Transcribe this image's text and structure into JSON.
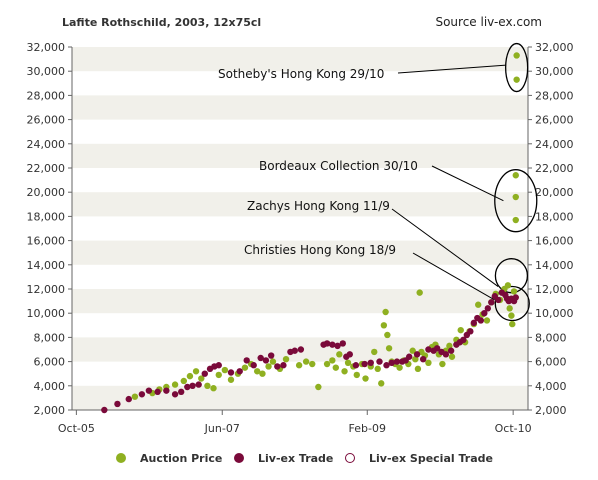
{
  "header": {
    "title": "Lafite Rothschild, 2003, 12x75cl",
    "source": "Source liv-ex.com"
  },
  "legend": {
    "items": [
      {
        "label": "Auction Price",
        "color": "#8fb021",
        "hollow": false
      },
      {
        "label": "Liv-ex Trade",
        "color": "#7a0a3a",
        "hollow": false
      },
      {
        "label": "Liv-ex Special Trade",
        "color": "#7a0a3a",
        "hollow": true
      }
    ]
  },
  "colors": {
    "auction": "#8fb021",
    "trade": "#7a0a3a",
    "band": "#f1f0ea",
    "axis": "#666666"
  },
  "chart_data": {
    "type": "scatter",
    "title": "Lafite Rothschild, 2003, 12x75cl",
    "source": "Source liv-ex.com",
    "xlabel": "",
    "ylabel": "",
    "ylim": [
      2000,
      32000
    ],
    "xlim": [
      "2005-10",
      "2010-11"
    ],
    "y_ticks": [
      "2,000",
      "4,000",
      "6,000",
      "8,000",
      "10,000",
      "12,000",
      "14,000",
      "16,000",
      "18,000",
      "20,000",
      "22,000",
      "24,000",
      "26,000",
      "28,000",
      "30,000",
      "32,000"
    ],
    "x_ticks": [
      {
        "label": "Oct-05",
        "value": 2005.75
      },
      {
        "label": "Jun-07",
        "value": 2007.42
      },
      {
        "label": "Feb-09",
        "value": 2009.08
      },
      {
        "label": "Oct-10",
        "value": 2010.75
      }
    ],
    "axes": {
      "left": true,
      "right": true
    },
    "grid": "alternating horizontal bands",
    "series": [
      {
        "name": "Auction Price",
        "points": [
          [
            2006.42,
            3100
          ],
          [
            2006.62,
            3400
          ],
          [
            2006.7,
            3700
          ],
          [
            2006.78,
            3900
          ],
          [
            2006.88,
            4100
          ],
          [
            2006.98,
            4400
          ],
          [
            2007.05,
            4800
          ],
          [
            2007.12,
            5200
          ],
          [
            2007.18,
            4600
          ],
          [
            2007.25,
            4000
          ],
          [
            2007.32,
            3800
          ],
          [
            2007.38,
            4900
          ],
          [
            2007.45,
            5300
          ],
          [
            2007.52,
            4500
          ],
          [
            2007.6,
            5000
          ],
          [
            2007.68,
            5500
          ],
          [
            2007.75,
            5800
          ],
          [
            2007.82,
            5200
          ],
          [
            2007.88,
            5000
          ],
          [
            2007.95,
            5600
          ],
          [
            2008.0,
            6000
          ],
          [
            2008.08,
            5400
          ],
          [
            2008.15,
            6200
          ],
          [
            2008.3,
            5700
          ],
          [
            2008.38,
            6000
          ],
          [
            2008.45,
            5800
          ],
          [
            2008.52,
            3900
          ],
          [
            2008.62,
            5800
          ],
          [
            2008.68,
            6100
          ],
          [
            2008.72,
            5500
          ],
          [
            2008.76,
            6600
          ],
          [
            2008.82,
            5200
          ],
          [
            2008.86,
            5900
          ],
          [
            2008.92,
            5600
          ],
          [
            2008.96,
            4900
          ],
          [
            2009.02,
            5800
          ],
          [
            2009.06,
            4600
          ],
          [
            2009.12,
            5600
          ],
          [
            2009.16,
            6800
          ],
          [
            2009.2,
            5400
          ],
          [
            2009.24,
            4200
          ],
          [
            2009.27,
            9000
          ],
          [
            2009.29,
            10100
          ],
          [
            2009.31,
            8200
          ],
          [
            2009.33,
            7100
          ],
          [
            2009.36,
            6000
          ],
          [
            2009.4,
            5800
          ],
          [
            2009.45,
            5500
          ],
          [
            2009.5,
            6100
          ],
          [
            2009.55,
            5800
          ],
          [
            2009.6,
            6900
          ],
          [
            2009.63,
            6200
          ],
          [
            2009.66,
            5400
          ],
          [
            2009.68,
            11700
          ],
          [
            2009.7,
            6800
          ],
          [
            2009.74,
            6500
          ],
          [
            2009.78,
            5900
          ],
          [
            2009.82,
            7200
          ],
          [
            2009.86,
            7400
          ],
          [
            2009.9,
            6600
          ],
          [
            2009.94,
            5800
          ],
          [
            2009.98,
            6900
          ],
          [
            2010.02,
            7300
          ],
          [
            2010.05,
            6400
          ],
          [
            2010.1,
            7800
          ],
          [
            2010.15,
            8600
          ],
          [
            2010.2,
            7600
          ],
          [
            2010.25,
            8500
          ],
          [
            2010.3,
            9100
          ],
          [
            2010.35,
            10700
          ],
          [
            2010.4,
            9900
          ],
          [
            2010.45,
            9400
          ],
          [
            2010.5,
            10900
          ],
          [
            2010.55,
            11600
          ],
          [
            2010.6,
            11100
          ],
          [
            2010.65,
            12000
          ],
          [
            2010.69,
            12300
          ],
          [
            2010.71,
            10400
          ],
          [
            2010.73,
            9800
          ],
          [
            2010.74,
            9100
          ],
          [
            2010.76,
            11800
          ],
          [
            2010.78,
            21400
          ],
          [
            2010.78,
            19600
          ],
          [
            2010.78,
            17700
          ],
          [
            2010.79,
            31300
          ],
          [
            2010.79,
            29300
          ]
        ]
      },
      {
        "name": "Liv-ex Trade",
        "points": [
          [
            2006.07,
            2000
          ],
          [
            2006.22,
            2500
          ],
          [
            2006.35,
            2900
          ],
          [
            2006.5,
            3300
          ],
          [
            2006.58,
            3600
          ],
          [
            2006.68,
            3500
          ],
          [
            2006.78,
            3600
          ],
          [
            2006.88,
            3300
          ],
          [
            2006.95,
            3500
          ],
          [
            2007.02,
            3900
          ],
          [
            2007.08,
            4000
          ],
          [
            2007.15,
            4100
          ],
          [
            2007.22,
            5000
          ],
          [
            2007.28,
            5400
          ],
          [
            2007.33,
            5600
          ],
          [
            2007.38,
            5700
          ],
          [
            2007.52,
            5100
          ],
          [
            2007.62,
            5200
          ],
          [
            2007.7,
            6100
          ],
          [
            2007.78,
            5700
          ],
          [
            2007.86,
            6300
          ],
          [
            2007.92,
            6100
          ],
          [
            2007.98,
            6500
          ],
          [
            2008.05,
            5600
          ],
          [
            2008.12,
            5700
          ],
          [
            2008.2,
            6800
          ],
          [
            2008.25,
            6900
          ],
          [
            2008.32,
            7000
          ],
          [
            2008.58,
            7400
          ],
          [
            2008.62,
            7500
          ],
          [
            2008.68,
            7400
          ],
          [
            2008.74,
            7300
          ],
          [
            2008.8,
            7500
          ],
          [
            2008.84,
            6400
          ],
          [
            2008.88,
            6600
          ],
          [
            2008.95,
            5700
          ],
          [
            2009.05,
            5800
          ],
          [
            2009.12,
            5900
          ],
          [
            2009.22,
            6000
          ],
          [
            2009.3,
            5700
          ],
          [
            2009.36,
            5900
          ],
          [
            2009.42,
            6000
          ],
          [
            2009.48,
            6000
          ],
          [
            2009.52,
            6100
          ],
          [
            2009.56,
            6400
          ],
          [
            2009.65,
            6600
          ],
          [
            2009.72,
            6200
          ],
          [
            2009.78,
            7000
          ],
          [
            2009.84,
            6900
          ],
          [
            2009.88,
            7100
          ],
          [
            2009.93,
            6800
          ],
          [
            2009.98,
            6600
          ],
          [
            2010.04,
            6900
          ],
          [
            2010.1,
            7400
          ],
          [
            2010.14,
            7600
          ],
          [
            2010.18,
            7800
          ],
          [
            2010.22,
            8200
          ],
          [
            2010.26,
            8500
          ],
          [
            2010.3,
            9200
          ],
          [
            2010.34,
            9600
          ],
          [
            2010.38,
            9400
          ],
          [
            2010.42,
            10000
          ],
          [
            2010.46,
            10400
          ],
          [
            2010.5,
            10900
          ],
          [
            2010.54,
            11400
          ],
          [
            2010.58,
            11100
          ],
          [
            2010.62,
            11700
          ],
          [
            2010.66,
            11500
          ],
          [
            2010.68,
            11200
          ],
          [
            2010.7,
            11000
          ],
          [
            2010.73,
            11200
          ],
          [
            2010.76,
            11000
          ],
          [
            2010.78,
            11300
          ]
        ]
      },
      {
        "name": "Liv-ex Special Trade",
        "points": []
      }
    ],
    "annotations": [
      {
        "text": "Sotheby's Hong Kong 29/10",
        "target": {
          "x": 2010.76,
          "y": 30500
        }
      },
      {
        "text": "Bordeaux Collection 30/10",
        "target": {
          "x": 2010.73,
          "y": 19300
        }
      },
      {
        "text": "Zachys Hong Kong 11/9",
        "target": {
          "x": 2010.67,
          "y": 12200
        }
      },
      {
        "text": "Christies Hong Kong 18/9",
        "target": {
          "x": 2010.63,
          "y": 11100
        }
      }
    ],
    "highlight_ellipses": [
      {
        "label": "Sotheby's Hong Kong 29/10",
        "x": 2010.79,
        "y": 30300
      },
      {
        "label": "Bordeaux Collection 30/10",
        "x": 2010.78,
        "y": 19300
      },
      {
        "label": "Zachys Hong Kong 11/9",
        "x": 2010.73,
        "y": 13100
      },
      {
        "label": "Christies Hong Kong 18/9",
        "x": 2010.74,
        "y": 10800
      }
    ]
  }
}
